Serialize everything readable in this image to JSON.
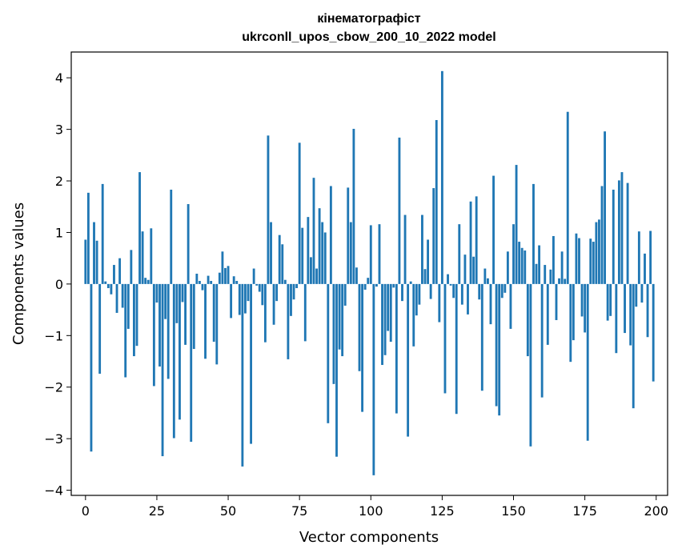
{
  "chart_data": {
    "type": "bar",
    "title": "кінематографіст",
    "subtitle": "ukrconll_upos_cbow_200_10_2022 model",
    "xlabel": "Vector components",
    "ylabel": "Components values",
    "xlim": [
      -5,
      204
    ],
    "ylim": [
      -4.1,
      4.5
    ],
    "x_ticks": [
      0,
      25,
      50,
      75,
      100,
      125,
      150,
      175,
      200
    ],
    "x_tick_labels": [
      "0",
      "25",
      "50",
      "75",
      "100",
      "125",
      "150",
      "175",
      "200"
    ],
    "y_ticks": [
      -4,
      -3,
      -2,
      -1,
      0,
      1,
      2,
      3,
      4
    ],
    "y_tick_labels": [
      "−4",
      "−3",
      "−2",
      "−1",
      "0",
      "1",
      "2",
      "3",
      "4"
    ],
    "bar_color": "#1f77b4",
    "grid": false,
    "values": [
      0.86,
      1.77,
      -3.25,
      1.2,
      0.84,
      -1.74,
      1.94,
      0.05,
      -0.08,
      -0.2,
      0.37,
      -0.56,
      0.5,
      -0.46,
      -1.81,
      -0.87,
      0.66,
      -1.4,
      -1.2,
      2.17,
      1.02,
      0.12,
      0.08,
      1.08,
      -1.98,
      -0.36,
      -1.6,
      -3.34,
      -0.68,
      -1.84,
      1.83,
      -2.99,
      -0.76,
      -2.63,
      -0.35,
      -1.18,
      1.55,
      -3.06,
      -1.26,
      0.2,
      0.06,
      -0.12,
      -1.45,
      0.16,
      0.06,
      -1.12,
      -1.56,
      0.22,
      0.63,
      0.31,
      0.35,
      -0.66,
      0.15,
      0.06,
      -0.6,
      -3.54,
      -0.57,
      -0.33,
      -3.1,
      0.3,
      -0.03,
      -0.15,
      -0.41,
      -1.13,
      2.88,
      1.2,
      -0.79,
      -0.33,
      0.95,
      0.77,
      0.08,
      -1.46,
      -0.62,
      -0.3,
      -0.08,
      2.74,
      1.09,
      -1.11,
      1.3,
      0.52,
      2.06,
      0.3,
      1.47,
      1.2,
      1.0,
      -2.7,
      1.9,
      -1.94,
      -3.35,
      -1.27,
      -1.4,
      -0.42,
      1.87,
      1.2,
      3.01,
      0.32,
      -1.69,
      -2.48,
      -0.11,
      0.12,
      1.14,
      -3.71,
      -0.05,
      1.16,
      -1.57,
      -1.38,
      -0.91,
      -1.12,
      -0.07,
      -2.51,
      2.84,
      -0.33,
      1.34,
      -2.96,
      0.05,
      -1.21,
      -0.61,
      -0.4,
      1.34,
      0.29,
      0.86,
      -0.29,
      1.86,
      3.18,
      -0.74,
      4.13,
      -2.12,
      0.19,
      -0.03,
      -0.27,
      -2.52,
      1.16,
      -0.4,
      0.57,
      -0.59,
      1.6,
      0.53,
      1.7,
      -0.3,
      -2.07,
      0.3,
      0.11,
      -0.78,
      2.1,
      -2.37,
      -2.55,
      -0.27,
      -0.17,
      0.63,
      -0.87,
      1.16,
      2.31,
      0.82,
      0.7,
      0.65,
      -1.4,
      -3.15,
      1.94,
      0.39,
      0.75,
      -2.2,
      0.37,
      -1.18,
      0.28,
      0.93,
      -0.7,
      0.11,
      0.63,
      0.1,
      3.34,
      -1.51,
      -1.09,
      0.98,
      0.89,
      -0.63,
      -0.94,
      -3.04,
      0.88,
      0.82,
      1.2,
      1.25,
      1.9,
      2.96,
      -0.71,
      -0.62,
      1.83,
      -1.34,
      2.01,
      2.17,
      -0.95,
      1.96,
      -1.19,
      -2.41,
      -0.44,
      1.02,
      -0.36,
      0.59,
      -1.03,
      1.03,
      -1.89
    ]
  }
}
